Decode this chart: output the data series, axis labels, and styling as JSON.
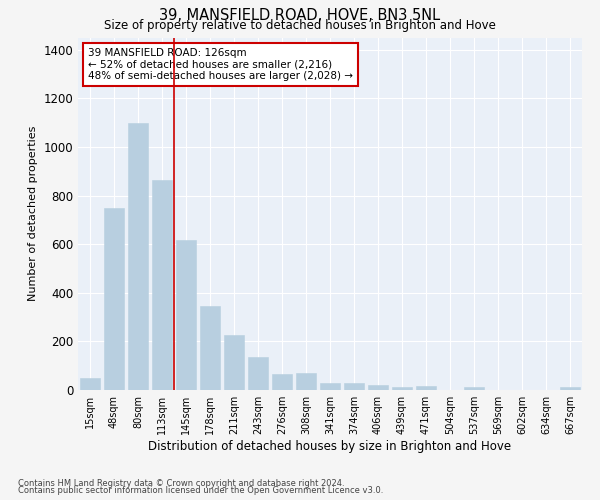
{
  "title1": "39, MANSFIELD ROAD, HOVE, BN3 5NL",
  "title2": "Size of property relative to detached houses in Brighton and Hove",
  "xlabel": "Distribution of detached houses by size in Brighton and Hove",
  "ylabel": "Number of detached properties",
  "footnote1": "Contains HM Land Registry data © Crown copyright and database right 2024.",
  "footnote2": "Contains public sector information licensed under the Open Government Licence v3.0.",
  "annotation_line1": "39 MANSFIELD ROAD: 126sqm",
  "annotation_line2": "← 52% of detached houses are smaller (2,216)",
  "annotation_line3": "48% of semi-detached houses are larger (2,028) →",
  "bar_color": "#b8cfe0",
  "bar_edge_color": "#b8cfe0",
  "vline_color": "#cc0000",
  "fig_bg_color": "#f5f5f5",
  "axes_bg_color": "#eaf0f8",
  "grid_color": "#ffffff",
  "categories": [
    "15sqm",
    "48sqm",
    "80sqm",
    "113sqm",
    "145sqm",
    "178sqm",
    "211sqm",
    "243sqm",
    "276sqm",
    "308sqm",
    "341sqm",
    "374sqm",
    "406sqm",
    "439sqm",
    "471sqm",
    "504sqm",
    "537sqm",
    "569sqm",
    "602sqm",
    "634sqm",
    "667sqm"
  ],
  "values": [
    48,
    748,
    1100,
    862,
    617,
    345,
    225,
    135,
    65,
    70,
    30,
    30,
    22,
    12,
    17,
    0,
    12,
    0,
    0,
    0,
    12
  ],
  "vline_x": 3.5,
  "ylim": [
    0,
    1450
  ],
  "yticks": [
    0,
    200,
    400,
    600,
    800,
    1000,
    1200,
    1400
  ]
}
